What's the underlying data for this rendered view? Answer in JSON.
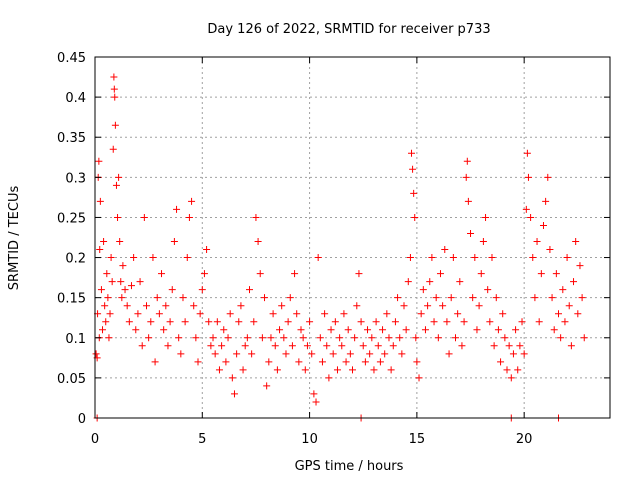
{
  "chart_data": {
    "type": "scatter",
    "title": "Day 126 of 2022, SRMTID for receiver p733",
    "xlabel": "GPS time / hours",
    "ylabel": "SRMTID / TECUs",
    "xlim": [
      0,
      24
    ],
    "ylim": [
      0,
      0.45
    ],
    "xticks": [
      0,
      5,
      10,
      15,
      20
    ],
    "xtick_labels": [
      "0",
      "5",
      "10",
      "15",
      "20"
    ],
    "yticks": [
      0,
      0.05,
      0.1,
      0.15,
      0.2,
      0.25,
      0.3,
      0.35,
      0.4,
      0.45
    ],
    "ytick_labels": [
      "0",
      "0.05",
      "0.1",
      "0.15",
      "0.2",
      "0.25",
      "0.3",
      "0.35",
      "0.4",
      "0.45"
    ],
    "grid": true,
    "marker": "+",
    "color": "#ff0000",
    "series": [
      {
        "name": "SRMTID",
        "points": [
          [
            0.05,
            0.08
          ],
          [
            0.1,
            0.075
          ],
          [
            0.12,
            0.13
          ],
          [
            0.15,
            0.3
          ],
          [
            0.18,
            0.32
          ],
          [
            0.2,
            0.1
          ],
          [
            0.22,
            0.21
          ],
          [
            0.25,
            0.27
          ],
          [
            0.3,
            0.16
          ],
          [
            0.35,
            0.11
          ],
          [
            0.4,
            0.22
          ],
          [
            0.45,
            0.14
          ],
          [
            0.5,
            0.12
          ],
          [
            0.55,
            0.18
          ],
          [
            0.6,
            0.15
          ],
          [
            0.65,
            0.1
          ],
          [
            0.7,
            0.13
          ],
          [
            0.75,
            0.2
          ],
          [
            0.8,
            0.17
          ],
          [
            0.85,
            0.335
          ],
          [
            0.88,
            0.425
          ],
          [
            0.9,
            0.41
          ],
          [
            0.92,
            0.4
          ],
          [
            0.95,
            0.365
          ],
          [
            1.0,
            0.29
          ],
          [
            1.05,
            0.25
          ],
          [
            1.1,
            0.3
          ],
          [
            1.15,
            0.22
          ],
          [
            1.2,
            0.17
          ],
          [
            1.25,
            0.15
          ],
          [
            1.3,
            0.19
          ],
          [
            1.4,
            0.16
          ],
          [
            1.5,
            0.14
          ],
          [
            1.6,
            0.12
          ],
          [
            1.7,
            0.165
          ],
          [
            1.8,
            0.2
          ],
          [
            1.9,
            0.11
          ],
          [
            2.0,
            0.13
          ],
          [
            2.1,
            0.17
          ],
          [
            2.2,
            0.09
          ],
          [
            2.3,
            0.25
          ],
          [
            2.4,
            0.14
          ],
          [
            2.5,
            0.1
          ],
          [
            2.6,
            0.12
          ],
          [
            2.7,
            0.2
          ],
          [
            2.8,
            0.07
          ],
          [
            2.9,
            0.15
          ],
          [
            3.0,
            0.13
          ],
          [
            3.1,
            0.18
          ],
          [
            3.2,
            0.11
          ],
          [
            3.3,
            0.14
          ],
          [
            3.4,
            0.09
          ],
          [
            3.5,
            0.12
          ],
          [
            3.6,
            0.16
          ],
          [
            3.7,
            0.22
          ],
          [
            3.8,
            0.26
          ],
          [
            3.9,
            0.1
          ],
          [
            4.0,
            0.08
          ],
          [
            4.1,
            0.15
          ],
          [
            4.2,
            0.12
          ],
          [
            4.3,
            0.2
          ],
          [
            4.4,
            0.25
          ],
          [
            4.5,
            0.27
          ],
          [
            4.6,
            0.14
          ],
          [
            4.7,
            0.1
          ],
          [
            4.8,
            0.07
          ],
          [
            4.9,
            0.13
          ],
          [
            5.0,
            0.16
          ],
          [
            5.1,
            0.18
          ],
          [
            5.2,
            0.21
          ],
          [
            5.3,
            0.12
          ],
          [
            5.4,
            0.09
          ],
          [
            5.5,
            0.1
          ],
          [
            5.6,
            0.08
          ],
          [
            5.7,
            0.12
          ],
          [
            5.8,
            0.06
          ],
          [
            5.9,
            0.09
          ],
          [
            6.0,
            0.11
          ],
          [
            6.1,
            0.07
          ],
          [
            6.2,
            0.1
          ],
          [
            6.3,
            0.13
          ],
          [
            6.4,
            0.05
          ],
          [
            6.5,
            0.03
          ],
          [
            6.6,
            0.08
          ],
          [
            6.7,
            0.12
          ],
          [
            6.8,
            0.14
          ],
          [
            6.9,
            0.06
          ],
          [
            7.0,
            0.09
          ],
          [
            7.1,
            0.1
          ],
          [
            7.2,
            0.16
          ],
          [
            7.3,
            0.08
          ],
          [
            7.4,
            0.12
          ],
          [
            7.5,
            0.25
          ],
          [
            7.6,
            0.22
          ],
          [
            7.7,
            0.18
          ],
          [
            7.8,
            0.1
          ],
          [
            7.9,
            0.15
          ],
          [
            8.0,
            0.04
          ],
          [
            8.1,
            0.07
          ],
          [
            8.2,
            0.1
          ],
          [
            8.3,
            0.13
          ],
          [
            8.4,
            0.09
          ],
          [
            8.5,
            0.06
          ],
          [
            8.6,
            0.11
          ],
          [
            8.7,
            0.14
          ],
          [
            8.8,
            0.1
          ],
          [
            8.9,
            0.08
          ],
          [
            9.0,
            0.12
          ],
          [
            9.1,
            0.15
          ],
          [
            9.2,
            0.09
          ],
          [
            9.3,
            0.18
          ],
          [
            9.4,
            0.13
          ],
          [
            9.5,
            0.07
          ],
          [
            9.6,
            0.11
          ],
          [
            9.7,
            0.1
          ],
          [
            9.8,
            0.06
          ],
          [
            9.9,
            0.09
          ],
          [
            10.0,
            0.12
          ],
          [
            10.1,
            0.08
          ],
          [
            10.2,
            0.03
          ],
          [
            10.3,
            0.02
          ],
          [
            10.4,
            0.2
          ],
          [
            10.5,
            0.1
          ],
          [
            10.6,
            0.07
          ],
          [
            10.7,
            0.13
          ],
          [
            10.8,
            0.09
          ],
          [
            10.9,
            0.05
          ],
          [
            11.0,
            0.11
          ],
          [
            11.1,
            0.08
          ],
          [
            11.2,
            0.12
          ],
          [
            11.3,
            0.06
          ],
          [
            11.4,
            0.1
          ],
          [
            11.5,
            0.09
          ],
          [
            11.6,
            0.13
          ],
          [
            11.7,
            0.07
          ],
          [
            11.8,
            0.11
          ],
          [
            11.9,
            0.08
          ],
          [
            12.0,
            0.06
          ],
          [
            12.1,
            0.1
          ],
          [
            12.2,
            0.14
          ],
          [
            12.3,
            0.18
          ],
          [
            12.4,
            0.12
          ],
          [
            12.5,
            0.09
          ],
          [
            12.6,
            0.07
          ],
          [
            12.7,
            0.11
          ],
          [
            12.8,
            0.08
          ],
          [
            12.9,
            0.1
          ],
          [
            13.0,
            0.06
          ],
          [
            13.1,
            0.12
          ],
          [
            13.2,
            0.09
          ],
          [
            13.3,
            0.07
          ],
          [
            13.4,
            0.11
          ],
          [
            13.5,
            0.08
          ],
          [
            13.6,
            0.13
          ],
          [
            13.7,
            0.1
          ],
          [
            13.8,
            0.06
          ],
          [
            13.9,
            0.09
          ],
          [
            14.0,
            0.12
          ],
          [
            14.1,
            0.15
          ],
          [
            14.2,
            0.1
          ],
          [
            14.3,
            0.08
          ],
          [
            14.4,
            0.14
          ],
          [
            14.5,
            0.11
          ],
          [
            14.6,
            0.17
          ],
          [
            14.7,
            0.2
          ],
          [
            14.75,
            0.33
          ],
          [
            14.8,
            0.31
          ],
          [
            14.85,
            0.28
          ],
          [
            14.9,
            0.25
          ],
          [
            14.95,
            0.1
          ],
          [
            15.0,
            0.07
          ],
          [
            15.1,
            0.05
          ],
          [
            15.2,
            0.13
          ],
          [
            15.3,
            0.16
          ],
          [
            15.4,
            0.11
          ],
          [
            15.5,
            0.14
          ],
          [
            15.6,
            0.17
          ],
          [
            15.7,
            0.2
          ],
          [
            15.8,
            0.12
          ],
          [
            15.9,
            0.15
          ],
          [
            16.0,
            0.1
          ],
          [
            16.1,
            0.18
          ],
          [
            16.2,
            0.14
          ],
          [
            16.3,
            0.21
          ],
          [
            16.4,
            0.12
          ],
          [
            16.5,
            0.08
          ],
          [
            16.6,
            0.15
          ],
          [
            16.7,
            0.2
          ],
          [
            16.8,
            0.1
          ],
          [
            16.9,
            0.13
          ],
          [
            17.0,
            0.17
          ],
          [
            17.1,
            0.09
          ],
          [
            17.2,
            0.12
          ],
          [
            17.3,
            0.3
          ],
          [
            17.35,
            0.32
          ],
          [
            17.4,
            0.27
          ],
          [
            17.5,
            0.23
          ],
          [
            17.6,
            0.15
          ],
          [
            17.7,
            0.2
          ],
          [
            17.8,
            0.11
          ],
          [
            17.9,
            0.14
          ],
          [
            18.0,
            0.18
          ],
          [
            18.1,
            0.22
          ],
          [
            18.2,
            0.25
          ],
          [
            18.3,
            0.16
          ],
          [
            18.4,
            0.12
          ],
          [
            18.5,
            0.2
          ],
          [
            18.6,
            0.09
          ],
          [
            18.7,
            0.15
          ],
          [
            18.8,
            0.11
          ],
          [
            18.9,
            0.07
          ],
          [
            19.0,
            0.13
          ],
          [
            19.1,
            0.1
          ],
          [
            19.2,
            0.06
          ],
          [
            19.3,
            0.09
          ],
          [
            19.4,
            0.05
          ],
          [
            19.5,
            0.08
          ],
          [
            19.6,
            0.11
          ],
          [
            19.7,
            0.06
          ],
          [
            19.8,
            0.09
          ],
          [
            19.9,
            0.12
          ],
          [
            20.0,
            0.08
          ],
          [
            20.1,
            0.26
          ],
          [
            20.15,
            0.33
          ],
          [
            20.2,
            0.3
          ],
          [
            20.3,
            0.25
          ],
          [
            20.4,
            0.2
          ],
          [
            20.5,
            0.15
          ],
          [
            20.6,
            0.22
          ],
          [
            20.7,
            0.12
          ],
          [
            20.8,
            0.18
          ],
          [
            20.9,
            0.24
          ],
          [
            21.0,
            0.27
          ],
          [
            21.1,
            0.3
          ],
          [
            21.2,
            0.21
          ],
          [
            21.3,
            0.15
          ],
          [
            21.4,
            0.11
          ],
          [
            21.5,
            0.18
          ],
          [
            21.6,
            0.13
          ],
          [
            21.7,
            0.1
          ],
          [
            21.8,
            0.16
          ],
          [
            21.9,
            0.12
          ],
          [
            22.0,
            0.2
          ],
          [
            22.1,
            0.14
          ],
          [
            22.2,
            0.09
          ],
          [
            22.3,
            0.17
          ],
          [
            22.4,
            0.22
          ],
          [
            22.5,
            0.13
          ],
          [
            22.6,
            0.19
          ],
          [
            22.7,
            0.15
          ],
          [
            22.8,
            0.1
          ],
          [
            0.1,
            0.0
          ],
          [
            12.4,
            0.0
          ],
          [
            19.4,
            0.0
          ],
          [
            21.6,
            0.0
          ]
        ]
      }
    ]
  }
}
